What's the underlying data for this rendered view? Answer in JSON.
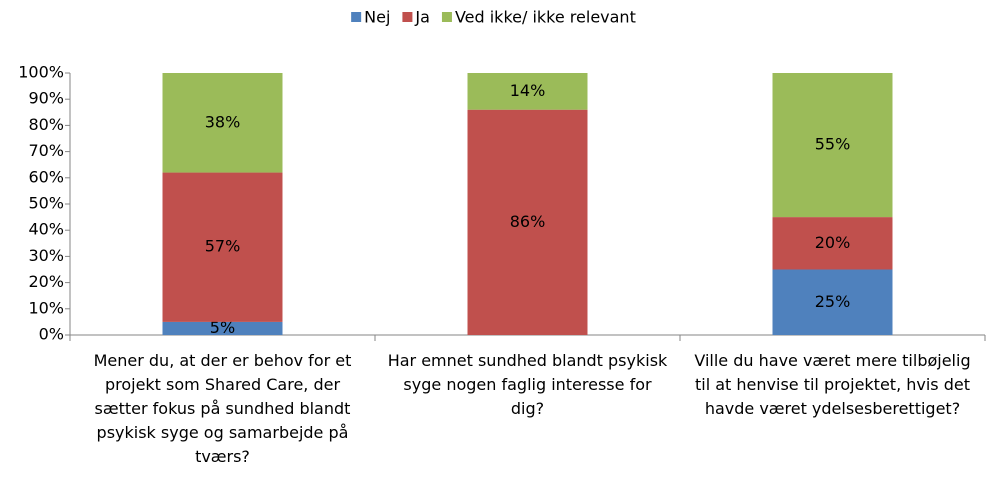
{
  "chart_data": {
    "type": "stacked_bar",
    "categories": [
      "Mener du, at der er behov for et projekt som Shared Care, der sætter fokus på sundhed blandt psykisk syge og samarbejde på tværs?",
      "Har emnet sundhed blandt psykisk syge nogen faglig interesse for dig?",
      "Ville du have været mere tilbøjelig til at henvise til projektet, hvis det havde været ydelsesberettiget?"
    ],
    "series": [
      {
        "name": "Nej",
        "color": "#4f81bd",
        "values": [
          5,
          0,
          25
        ],
        "value_labels": [
          "5%",
          null,
          "25%"
        ]
      },
      {
        "name": "Ja",
        "color": "#c0504d",
        "values": [
          57,
          86,
          20
        ],
        "value_labels": [
          "57%",
          "86%",
          "20%"
        ]
      },
      {
        "name": "Ved ikke/ ikke relevant",
        "color": "#9bbb59",
        "values": [
          38,
          14,
          55
        ],
        "value_labels": [
          "38%",
          "14%",
          "55%"
        ]
      }
    ],
    "ylim": [
      0,
      100
    ],
    "yticks": [
      {
        "value": 0,
        "label": "0%"
      },
      {
        "value": 10,
        "label": "10%"
      },
      {
        "value": 20,
        "label": "20%"
      },
      {
        "value": 30,
        "label": "30%"
      },
      {
        "value": 40,
        "label": "40%"
      },
      {
        "value": 50,
        "label": "50%"
      },
      {
        "value": 60,
        "label": "60%"
      },
      {
        "value": 70,
        "label": "70%"
      },
      {
        "value": 80,
        "label": "80%"
      },
      {
        "value": 90,
        "label": "90%"
      },
      {
        "value": 100,
        "label": "100%"
      }
    ],
    "legend": "top",
    "grid": false
  }
}
